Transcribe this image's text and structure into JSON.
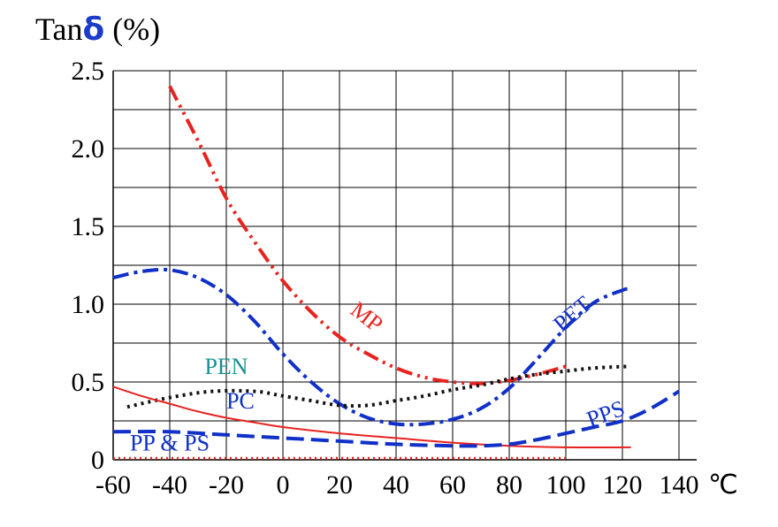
{
  "title": {
    "prefix": "Tan",
    "symbol": "δ",
    "unit": "(%)"
  },
  "chart_data": {
    "type": "line",
    "xlabel": "",
    "x_unit": "℃",
    "ylabel": "Tanδ (%)",
    "xlim": [
      -60,
      140
    ],
    "ylim": [
      0,
      2.5
    ],
    "grid": true,
    "x_ticks": [
      -60,
      -40,
      -20,
      0,
      20,
      40,
      60,
      80,
      100,
      120,
      140
    ],
    "y_ticks": [
      0,
      0.5,
      1.0,
      1.5,
      2.0,
      2.5
    ],
    "y_tick_labels": [
      "0",
      "0.5",
      "1.0",
      "1.5",
      "2.0",
      "2.5"
    ],
    "x_tick_labels": [
      "-60",
      "-40",
      "-20",
      "0",
      "20",
      "40",
      "60",
      "80",
      "100",
      "120",
      "140"
    ],
    "series": [
      {
        "name": "MP",
        "color": "#e8231f",
        "dash": "dash-dot-dot",
        "label_pos": {
          "x": 28,
          "y": 0.88
        },
        "points": [
          [
            -40,
            2.4
          ],
          [
            -30,
            2.05
          ],
          [
            -20,
            1.68
          ],
          [
            -10,
            1.4
          ],
          [
            0,
            1.15
          ],
          [
            10,
            0.95
          ],
          [
            20,
            0.79
          ],
          [
            30,
            0.68
          ],
          [
            40,
            0.59
          ],
          [
            50,
            0.53
          ],
          [
            60,
            0.5
          ],
          [
            70,
            0.49
          ],
          [
            80,
            0.51
          ],
          [
            90,
            0.55
          ],
          [
            100,
            0.6
          ]
        ]
      },
      {
        "name": "PET",
        "color": "#1030c8",
        "dash": "dash-dot",
        "label_pos": {
          "x": 104,
          "y": 0.9
        },
        "points": [
          [
            -60,
            1.17
          ],
          [
            -50,
            1.21
          ],
          [
            -40,
            1.22
          ],
          [
            -30,
            1.17
          ],
          [
            -20,
            1.06
          ],
          [
            -10,
            0.89
          ],
          [
            0,
            0.68
          ],
          [
            10,
            0.5
          ],
          [
            20,
            0.36
          ],
          [
            30,
            0.27
          ],
          [
            40,
            0.23
          ],
          [
            50,
            0.23
          ],
          [
            60,
            0.26
          ],
          [
            70,
            0.33
          ],
          [
            80,
            0.46
          ],
          [
            90,
            0.65
          ],
          [
            100,
            0.85
          ],
          [
            110,
            1.01
          ],
          [
            120,
            1.09
          ],
          [
            123,
            1.1
          ]
        ]
      },
      {
        "name": "PEN",
        "color": "#1a9090",
        "line_color": "#111111",
        "dash": "dotted",
        "label_pos": {
          "x": -20,
          "y": 0.55
        },
        "points": [
          [
            -55,
            0.34
          ],
          [
            -40,
            0.4
          ],
          [
            -25,
            0.44
          ],
          [
            -10,
            0.44
          ],
          [
            0,
            0.41
          ],
          [
            10,
            0.38
          ],
          [
            20,
            0.35
          ],
          [
            30,
            0.35
          ],
          [
            40,
            0.38
          ],
          [
            50,
            0.41
          ],
          [
            60,
            0.45
          ],
          [
            70,
            0.48
          ],
          [
            80,
            0.52
          ],
          [
            90,
            0.55
          ],
          [
            100,
            0.57
          ],
          [
            110,
            0.59
          ],
          [
            122,
            0.6
          ]
        ]
      },
      {
        "name": "PC",
        "color": "#1030c8",
        "line_color": "#e8231f",
        "dash": "solid",
        "label_pos": {
          "x": -15,
          "y": 0.33
        },
        "points": [
          [
            -60,
            0.47
          ],
          [
            -50,
            0.41
          ],
          [
            -40,
            0.36
          ],
          [
            -30,
            0.31
          ],
          [
            -20,
            0.27
          ],
          [
            -10,
            0.24
          ],
          [
            0,
            0.21
          ],
          [
            20,
            0.17
          ],
          [
            40,
            0.14
          ],
          [
            60,
            0.11
          ],
          [
            80,
            0.09
          ],
          [
            100,
            0.08
          ],
          [
            123,
            0.08
          ]
        ]
      },
      {
        "name": "PPS",
        "color": "#1030c8",
        "dash": "dashed",
        "label_pos": {
          "x": 115,
          "y": 0.25
        },
        "points": [
          [
            -60,
            0.18
          ],
          [
            -40,
            0.18
          ],
          [
            -20,
            0.16
          ],
          [
            0,
            0.14
          ],
          [
            20,
            0.12
          ],
          [
            40,
            0.1
          ],
          [
            60,
            0.09
          ],
          [
            70,
            0.09
          ],
          [
            80,
            0.1
          ],
          [
            90,
            0.13
          ],
          [
            100,
            0.17
          ],
          [
            110,
            0.21
          ],
          [
            120,
            0.25
          ],
          [
            130,
            0.33
          ],
          [
            140,
            0.44
          ]
        ]
      },
      {
        "name": "PP & PS",
        "color": "#1030c8",
        "line_color": "#e8231f",
        "dash": "fine-dotted",
        "label_pos": {
          "x": -40,
          "y": 0.06
        },
        "points": [
          [
            -60,
            0.01
          ],
          [
            100,
            0.01
          ]
        ]
      }
    ]
  }
}
